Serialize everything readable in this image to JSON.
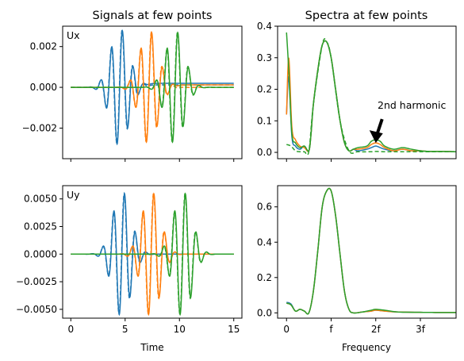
{
  "colors": {
    "blue": "#1f77b4",
    "orange": "#ff7f0e",
    "green": "#2ca02c"
  },
  "chart_data": [
    {
      "type": "line",
      "title": "Signals at few points",
      "panel_label": "Ux",
      "xlabel": "",
      "xlim": [
        -0.75,
        15.75
      ],
      "ylim": [
        -0.0035,
        0.003
      ],
      "xticks": [
        0,
        5,
        10,
        15
      ],
      "xtick_labels": [
        "",
        "",
        "",
        ""
      ],
      "yticks": [
        -0.002,
        0.0,
        0.002
      ],
      "ytick_labels": [
        "−0.002",
        "0.000",
        "0.002"
      ],
      "series": [
        {
          "color": "blue",
          "t0": 4.5,
          "sigma": 0.85,
          "freq": 1.0,
          "amp": 0.0029,
          "tail": 0.0002,
          "dash_tail": 0.00012,
          "dashed": true
        },
        {
          "color": "orange",
          "t0": 7.2,
          "sigma": 0.85,
          "freq": 1.0,
          "amp": 0.0028,
          "tail": 0.00012,
          "dash_tail": 0.0,
          "dashed": true
        },
        {
          "color": "green",
          "t0": 9.6,
          "sigma": 0.85,
          "freq": 1.0,
          "amp": 0.0028,
          "tail": 0.0,
          "dash_tail": 0.0,
          "dashed": true
        }
      ]
    },
    {
      "type": "line",
      "title": "Spectra at few points",
      "xlabel": "",
      "xlim": [
        -0.2,
        3.8
      ],
      "ylim": [
        -0.02,
        0.4
      ],
      "xticks": [
        0,
        1,
        2,
        3
      ],
      "xtick_labels": [
        "",
        "",
        "",
        ""
      ],
      "yticks": [
        0.0,
        0.1,
        0.2,
        0.3,
        0.4
      ],
      "ytick_labels": [
        "0.0",
        "0.1",
        "0.2",
        "0.3",
        "0.4"
      ],
      "annotation": {
        "text": "2nd harmonic",
        "x": 2.0,
        "y": 0.03,
        "text_x": 2.08,
        "text_y": 0.135
      },
      "series": [
        {
          "color": "blue",
          "x": [
            0,
            0.05,
            0.12,
            0.2,
            0.3,
            0.4,
            0.5,
            0.55,
            0.6,
            0.7,
            0.8,
            0.9,
            1.0,
            1.1,
            1.2,
            1.3,
            1.4,
            1.5,
            1.6,
            1.8,
            1.9,
            2.0,
            2.1,
            2.2,
            2.4,
            2.6,
            2.8,
            3.0,
            3.2,
            3.5,
            3.8
          ],
          "y": [
            0.12,
            0.24,
            0.05,
            0.02,
            0.01,
            0.02,
            0.005,
            0.06,
            0.15,
            0.26,
            0.34,
            0.35,
            0.3,
            0.2,
            0.1,
            0.03,
            0.005,
            0.01,
            0.005,
            0.01,
            0.015,
            0.02,
            0.015,
            0.01,
            0.005,
            0.01,
            0.005,
            0.005,
            0.003,
            0.003,
            0.002
          ]
        },
        {
          "color": "orange",
          "x": [
            0,
            0.05,
            0.12,
            0.2,
            0.3,
            0.4,
            0.5,
            0.55,
            0.6,
            0.7,
            0.8,
            0.9,
            1.0,
            1.1,
            1.2,
            1.3,
            1.4,
            1.5,
            1.6,
            1.8,
            1.9,
            2.0,
            2.1,
            2.2,
            2.4,
            2.6,
            2.8,
            3.0,
            3.2,
            3.5,
            3.8
          ],
          "y": [
            0.12,
            0.3,
            0.08,
            0.04,
            0.02,
            0.015,
            0.005,
            0.06,
            0.15,
            0.26,
            0.34,
            0.35,
            0.3,
            0.2,
            0.1,
            0.03,
            0.005,
            0.01,
            0.01,
            0.015,
            0.025,
            0.03,
            0.025,
            0.015,
            0.005,
            0.01,
            0.005,
            0.005,
            0.003,
            0.003,
            0.002
          ]
        },
        {
          "color": "green",
          "x": [
            0,
            0.05,
            0.12,
            0.2,
            0.3,
            0.4,
            0.5,
            0.55,
            0.6,
            0.7,
            0.8,
            0.9,
            1.0,
            1.1,
            1.2,
            1.3,
            1.4,
            1.5,
            1.6,
            1.8,
            1.9,
            2.0,
            2.1,
            2.2,
            2.4,
            2.6,
            2.8,
            3.0,
            3.2,
            3.5,
            3.8
          ],
          "y": [
            0.38,
            0.26,
            0.06,
            0.03,
            0.015,
            0.02,
            0.005,
            0.06,
            0.15,
            0.26,
            0.34,
            0.35,
            0.3,
            0.2,
            0.1,
            0.03,
            0.005,
            0.01,
            0.015,
            0.02,
            0.035,
            0.04,
            0.035,
            0.02,
            0.01,
            0.015,
            0.01,
            0.005,
            0.003,
            0.003,
            0.002
          ]
        },
        {
          "color": "green",
          "dashed": true,
          "x": [
            0,
            0.1,
            0.2,
            0.3,
            0.4,
            0.5,
            0.6,
            0.8,
            0.9,
            1.0,
            1.2,
            1.4,
            1.6,
            1.9,
            2.0,
            2.2,
            2.5,
            3.0,
            3.5,
            3.8
          ],
          "y": [
            0.025,
            0.02,
            0.005,
            0.002,
            0.002,
            0.003,
            0.15,
            0.34,
            0.35,
            0.3,
            0.1,
            0.005,
            0.002,
            0.002,
            0.003,
            0.002,
            0.002,
            0.002,
            0.002,
            0.002
          ]
        }
      ]
    },
    {
      "type": "line",
      "title": "",
      "panel_label": "Uy",
      "xlabel": "Time",
      "xlim": [
        -0.75,
        15.75
      ],
      "ylim": [
        -0.0058,
        0.0062
      ],
      "xticks": [
        0,
        5,
        10,
        15
      ],
      "xtick_labels": [
        "0",
        "5",
        "10",
        "15"
      ],
      "yticks": [
        -0.005,
        -0.0025,
        0.0,
        0.0025,
        0.005
      ],
      "ytick_labels": [
        "−0.0050",
        "−0.0025",
        "0.0000",
        "0.0025",
        "0.0050"
      ],
      "series": [
        {
          "color": "blue",
          "t0": 4.7,
          "sigma": 0.85,
          "freq": 1.0,
          "amp": 0.0057,
          "tail": 0.0,
          "dash_tail": 0.0,
          "dashed": true
        },
        {
          "color": "orange",
          "t0": 7.4,
          "sigma": 0.85,
          "freq": 1.0,
          "amp": 0.0057,
          "tail": 0.0,
          "dash_tail": 0.0,
          "dashed": true
        },
        {
          "color": "green",
          "t0": 10.3,
          "sigma": 0.85,
          "freq": 1.0,
          "amp": 0.0057,
          "tail": 0.0,
          "dash_tail": 0.0,
          "dashed": true
        }
      ]
    },
    {
      "type": "line",
      "title": "",
      "xlabel": "Frequency",
      "xlim": [
        -0.2,
        3.8
      ],
      "ylim": [
        -0.03,
        0.72
      ],
      "xticks": [
        0,
        1,
        2,
        3
      ],
      "xtick_labels": [
        "0",
        "f",
        "2f",
        "3f"
      ],
      "yticks": [
        0.0,
        0.2,
        0.4,
        0.6
      ],
      "ytick_labels": [
        "0.0",
        "0.2",
        "0.4",
        "0.6"
      ],
      "series": [
        {
          "color": "blue",
          "x": [
            0,
            0.1,
            0.2,
            0.3,
            0.4,
            0.5,
            0.6,
            0.7,
            0.8,
            0.9,
            1.0,
            1.1,
            1.2,
            1.3,
            1.4,
            1.5,
            1.7,
            1.9,
            2.0,
            2.2,
            2.5,
            3.0,
            3.5,
            3.8
          ],
          "y": [
            0.06,
            0.05,
            0.01,
            0.02,
            0.01,
            0.0,
            0.12,
            0.35,
            0.6,
            0.69,
            0.69,
            0.55,
            0.33,
            0.12,
            0.02,
            0.0,
            0.005,
            0.01,
            0.015,
            0.01,
            0.005,
            0.003,
            0.002,
            0.002
          ]
        },
        {
          "color": "orange",
          "x": [
            0,
            0.1,
            0.2,
            0.3,
            0.4,
            0.5,
            0.6,
            0.7,
            0.8,
            0.9,
            1.0,
            1.1,
            1.2,
            1.3,
            1.4,
            1.5,
            1.7,
            1.9,
            2.0,
            2.2,
            2.5,
            3.0,
            3.5,
            3.8
          ],
          "y": [
            0.055,
            0.045,
            0.01,
            0.02,
            0.01,
            0.0,
            0.12,
            0.35,
            0.6,
            0.69,
            0.69,
            0.55,
            0.33,
            0.12,
            0.02,
            0.0,
            0.005,
            0.01,
            0.015,
            0.01,
            0.005,
            0.003,
            0.002,
            0.002
          ]
        },
        {
          "color": "green",
          "x": [
            0,
            0.1,
            0.2,
            0.3,
            0.4,
            0.5,
            0.6,
            0.7,
            0.8,
            0.9,
            1.0,
            1.1,
            1.2,
            1.3,
            1.4,
            1.5,
            1.7,
            1.9,
            2.0,
            2.2,
            2.5,
            3.0,
            3.5,
            3.8
          ],
          "y": [
            0.055,
            0.045,
            0.01,
            0.02,
            0.01,
            0.0,
            0.12,
            0.35,
            0.6,
            0.69,
            0.69,
            0.55,
            0.33,
            0.12,
            0.02,
            0.0,
            0.005,
            0.015,
            0.02,
            0.015,
            0.005,
            0.003,
            0.002,
            0.002
          ]
        }
      ]
    }
  ]
}
